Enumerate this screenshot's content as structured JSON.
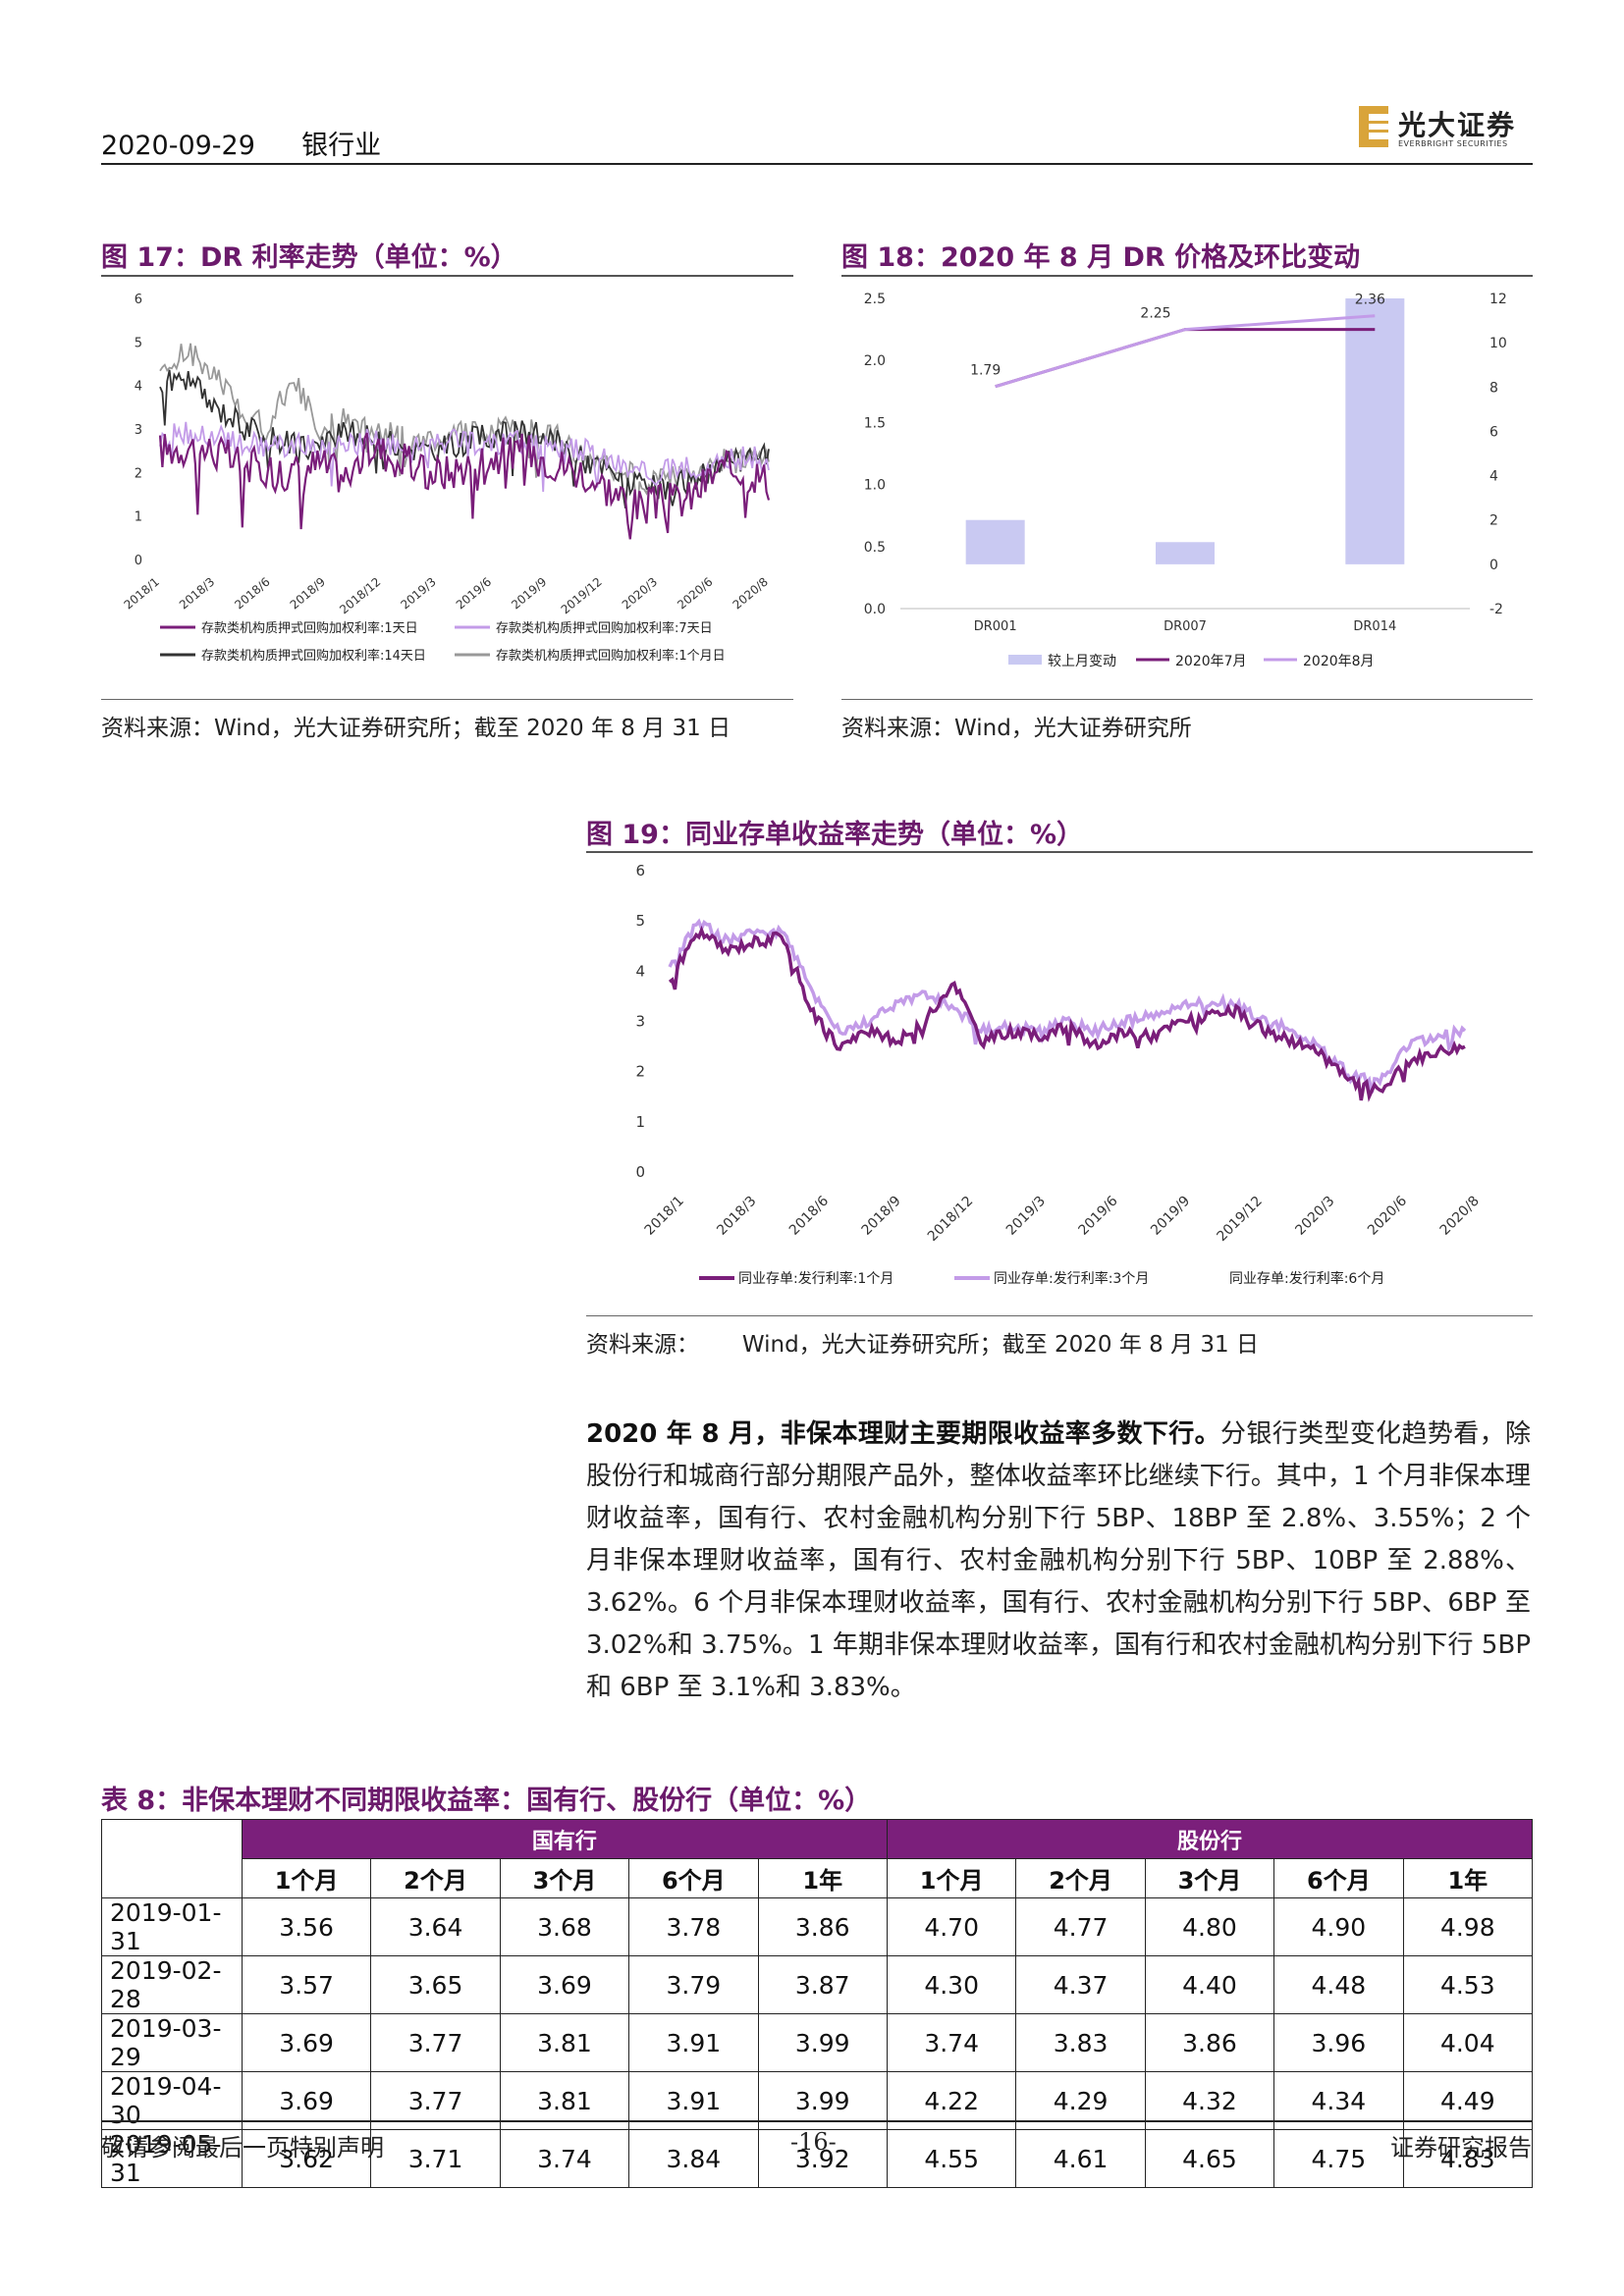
{
  "header": {
    "date": "2020-09-29",
    "industry": "银行业",
    "logo_text": "光大证券",
    "logo_sub": "EVERBRIGHT SECURITIES"
  },
  "fig17": {
    "title": "图 17：DR 利率走势（单位：%）",
    "source": "资料来源：Wind，光大证券研究所；截至 2020 年 8 月 31 日",
    "chart_data": {
      "type": "line",
      "x_ticks": [
        "2018/1",
        "2018/3",
        "2018/6",
        "2018/9",
        "2018/12",
        "2019/3",
        "2019/6",
        "2019/9",
        "2019/12",
        "2020/3",
        "2020/6",
        "2020/8"
      ],
      "y_ticks": [
        "0",
        "1",
        "2",
        "3",
        "4",
        "5",
        "6"
      ],
      "ylim": [
        0,
        6
      ],
      "series": [
        {
          "name": "存款类机构质押式回购加权利率:1天日",
          "color": "#7a1e7a",
          "values": [
            2.5,
            2.6,
            2.5,
            2.2,
            2.1,
            2.0,
            2.2,
            1.9,
            2.6,
            2.3,
            2.0,
            2.0,
            2.3,
            2.4,
            2.5,
            2.2,
            2.0,
            1.6,
            1.2,
            1.3,
            1.4,
            2.0,
            2.1,
            1.8
          ]
        },
        {
          "name": "存款类机构质押式回购加权利率:7天日",
          "color": "#c39be8",
          "values": [
            2.8,
            2.9,
            2.8,
            2.7,
            2.6,
            2.6,
            2.6,
            2.7,
            2.7,
            2.6,
            2.6,
            2.7,
            2.6,
            2.7,
            2.7,
            2.6,
            2.5,
            2.3,
            2.0,
            2.0,
            2.1,
            2.3,
            2.3,
            2.3
          ]
        },
        {
          "name": "存款类机构质押式回购加权利率:14天日",
          "color": "#333333",
          "values": [
            4.0,
            4.2,
            3.5,
            3.2,
            2.8,
            2.7,
            2.6,
            2.9,
            2.8,
            2.6,
            2.5,
            2.6,
            2.8,
            2.9,
            2.9,
            2.7,
            2.3,
            2.0,
            1.7,
            1.6,
            1.8,
            2.1,
            2.3,
            2.4
          ]
        },
        {
          "name": "存款类机构质押式回购加权利率:1个月日",
          "color": "#999999",
          "values": [
            4.2,
            4.8,
            4.3,
            3.5,
            3.0,
            4.2,
            3.0,
            3.2,
            3.0,
            2.8,
            2.7,
            2.9,
            2.9,
            3.0,
            3.0,
            2.8,
            2.4,
            2.1,
            1.9,
            1.8,
            2.0,
            2.2,
            2.4,
            2.4
          ]
        }
      ]
    }
  },
  "fig18": {
    "title": "图 18：2020 年 8 月 DR 价格及环比变动",
    "source": "资料来源：Wind，光大证券研究所",
    "chart_data": {
      "type": "bar",
      "categories": [
        "DR001",
        "DR007",
        "DR014"
      ],
      "left_ticks": [
        "0.0",
        "0.5",
        "1.0",
        "1.5",
        "2.0",
        "2.5"
      ],
      "right_ticks": [
        "-2",
        "0",
        "2",
        "4",
        "6",
        "8",
        "10",
        "12"
      ],
      "ylim_left": [
        0,
        2.5
      ],
      "ylim_right": [
        -2,
        12
      ],
      "series": [
        {
          "name": "较上月变动",
          "axis": "right",
          "color": "#c9c9f2",
          "values": [
            2,
            1,
            12
          ]
        },
        {
          "name": "2020年7月",
          "axis": "left",
          "color": "#7a1e7a",
          "values": [
            1.79,
            2.25,
            2.25
          ]
        },
        {
          "name": "2020年8月",
          "axis": "left",
          "color": "#c39be8",
          "values": [
            1.79,
            2.25,
            2.36
          ]
        }
      ],
      "data_labels": [
        "1.79",
        "2.25",
        "2.36"
      ]
    }
  },
  "fig19": {
    "title": "图 19：同业存单收益率走势（单位：%）",
    "source": "资料来源：      Wind，光大证券研究所；截至 2020 年 8 月 31 日",
    "chart_data": {
      "type": "line",
      "x_ticks": [
        "2018/1",
        "2018/3",
        "2018/6",
        "2018/9",
        "2018/12",
        "2019/3",
        "2019/6",
        "2019/9",
        "2019/12",
        "2020/3",
        "2020/6",
        "2020/8"
      ],
      "y_ticks": [
        "0",
        "1",
        "2",
        "3",
        "4",
        "5",
        "6"
      ],
      "ylim": [
        0,
        6
      ],
      "series": [
        {
          "name": "同业存单:发行利率:1个月",
          "color": "#7a1e7a",
          "values": [
            3.8,
            4.8,
            4.4,
            4.6,
            4.7,
            3.2,
            2.5,
            2.8,
            2.6,
            3.0,
            3.8,
            2.6,
            2.8,
            2.7,
            2.9,
            2.5,
            2.8,
            2.7,
            3.0,
            3.1,
            3.2,
            2.8,
            2.6,
            2.3,
            1.8,
            1.6,
            2.2,
            2.4,
            2.5
          ]
        },
        {
          "name": "同业存单:发行利率:3个月",
          "color": "#c39be8",
          "values": [
            4.0,
            5.0,
            4.6,
            4.8,
            4.8,
            3.6,
            2.8,
            3.0,
            3.4,
            3.5,
            3.3,
            2.8,
            2.9,
            2.8,
            3.0,
            2.8,
            3.0,
            3.1,
            3.3,
            3.4,
            3.3,
            3.0,
            2.8,
            2.4,
            1.9,
            1.8,
            2.5,
            2.7,
            2.8
          ]
        },
        {
          "name": "同业存单:发行利率:6个月",
          "color": "#dddddd",
          "values": []
        }
      ]
    }
  },
  "paragraph": {
    "lead": "2020 年 8 月，非保本理财主要期限收益率多数下行。",
    "body": "分银行类型变化趋势看，除股份行和城商行部分期限产品外，整体收益率环比继续下行。其中，1 个月非保本理财收益率，国有行、农村金融机构分别下行 5BP、18BP 至 2.8%、3.55%；2 个月非保本理财收益率，国有行、农村金融机构分别下行 5BP、10BP 至 2.88%、3.62%。6 个月非保本理财收益率，国有行、农村金融机构分别下行 5BP、6BP 至 3.02%和 3.75%。1 年期非保本理财收益率，国有行和农村金融机构分别下行 5BP 和 6BP 至 3.1%和 3.83%。"
  },
  "table8": {
    "title": "表 8：非保本理财不同期限收益率：国有行、股份行（单位：%）",
    "groups": [
      "国有行",
      "股份行"
    ],
    "sub_headers": [
      "1个月",
      "2个月",
      "3个月",
      "6个月",
      "1年",
      "1个月",
      "2个月",
      "3个月",
      "6个月",
      "1年"
    ],
    "rows": [
      {
        "date": "2019-01-31",
        "values": [
          "3.56",
          "3.64",
          "3.68",
          "3.78",
          "3.86",
          "4.70",
          "4.77",
          "4.80",
          "4.90",
          "4.98"
        ]
      },
      {
        "date": "2019-02-28",
        "values": [
          "3.57",
          "3.65",
          "3.69",
          "3.79",
          "3.87",
          "4.30",
          "4.37",
          "4.40",
          "4.48",
          "4.53"
        ]
      },
      {
        "date": "2019-03-29",
        "values": [
          "3.69",
          "3.77",
          "3.81",
          "3.91",
          "3.99",
          "3.74",
          "3.83",
          "3.86",
          "3.96",
          "4.04"
        ]
      },
      {
        "date": "2019-04-30",
        "values": [
          "3.69",
          "3.77",
          "3.81",
          "3.91",
          "3.99",
          "4.22",
          "4.29",
          "4.32",
          "4.34",
          "4.49"
        ]
      },
      {
        "date": "2019-05-31",
        "values": [
          "3.62",
          "3.71",
          "3.74",
          "3.84",
          "3.92",
          "4.55",
          "4.61",
          "4.65",
          "4.75",
          "4.83"
        ]
      }
    ]
  },
  "footer": {
    "left": "敬请参阅最后一页特别声明",
    "page": "-16-",
    "right": "证券研究报告"
  }
}
